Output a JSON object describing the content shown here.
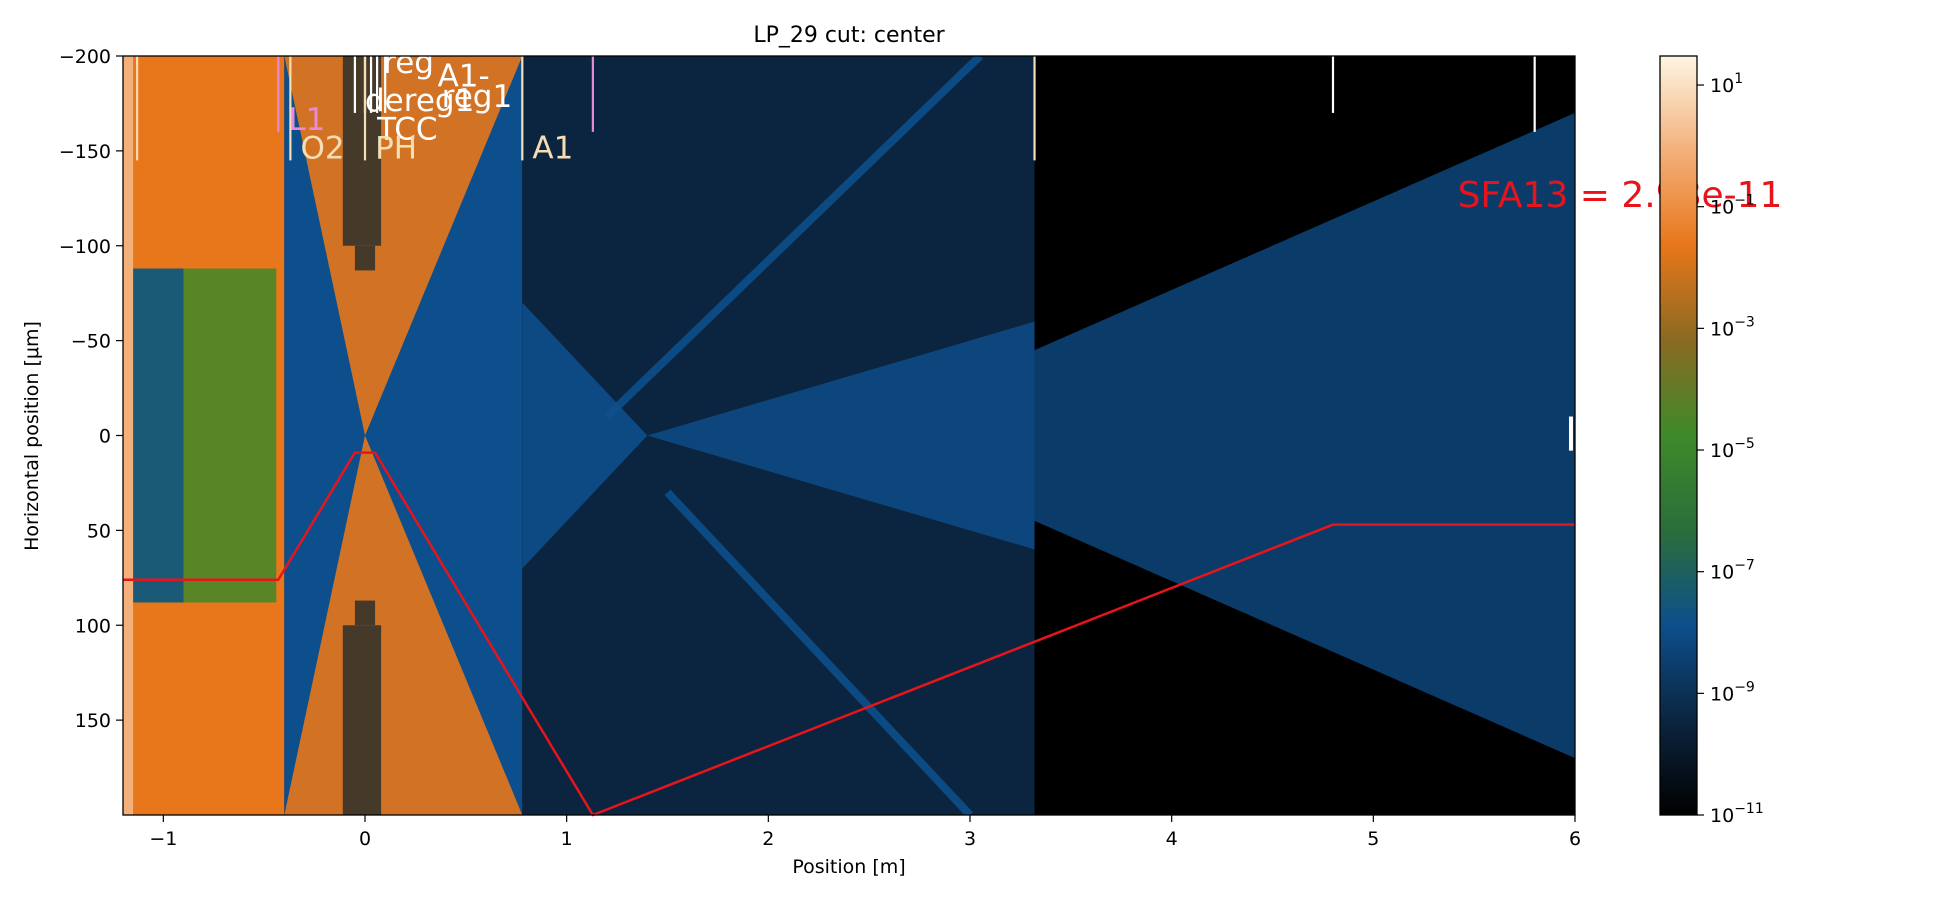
{
  "chart_data": {
    "type": "heatmap",
    "title": "LP_29 cut: center",
    "xlabel": "Position [m]",
    "ylabel": "Horizontal position [μm]",
    "xlim": [
      -1.2,
      6.0
    ],
    "ylim": [
      -200,
      200
    ],
    "y_inverted": true,
    "xticks": [
      -1,
      0,
      1,
      2,
      3,
      4,
      5,
      6
    ],
    "xtick_labels": [
      "−1",
      "0",
      "1",
      "2",
      "3",
      "4",
      "5",
      "6"
    ],
    "yticks": [
      -200,
      -150,
      -100,
      -50,
      0,
      50,
      100,
      150
    ],
    "ytick_labels": [
      "−200",
      "−150",
      "−100",
      "−50",
      "0",
      "50",
      "100",
      "150"
    ],
    "colorbar": {
      "scale": "log",
      "range": [
        1e-11,
        30
      ],
      "ticks": [
        1e-11,
        1e-09,
        1e-07,
        1e-05,
        0.001,
        0.1,
        10
      ],
      "tick_labels": [
        {
          "base": "10",
          "exp": "−11"
        },
        {
          "base": "10",
          "exp": "−9"
        },
        {
          "base": "10",
          "exp": "−7"
        },
        {
          "base": "10",
          "exp": "−5"
        },
        {
          "base": "10",
          "exp": "−3"
        },
        {
          "base": "10",
          "exp": "−1"
        },
        {
          "base": "10",
          "exp": "1"
        }
      ],
      "colormap": [
        "#000000",
        "#0b2540",
        "#0d4f8c",
        "#2a6e3a",
        "#3e8a2a",
        "#8a6a22",
        "#e8761a",
        "#f3b07a",
        "#fdf5e2"
      ]
    },
    "element_markers": [
      {
        "label": "",
        "x": -1.13,
        "color": "#f5deb3",
        "extent": [
          -200,
          -145
        ]
      },
      {
        "label": "L1",
        "x": -0.43,
        "color": "#e98ad8",
        "extent": [
          -200,
          -160
        ]
      },
      {
        "label": "O2",
        "x": -0.37,
        "color": "#f5deb3",
        "extent": [
          -200,
          -145
        ]
      },
      {
        "label": "reg",
        "x": -0.05,
        "color": "#ffffff",
        "extent": [
          -200,
          -170
        ]
      },
      {
        "label": "dereg1",
        "x": 0.0,
        "color": "#ffffff",
        "extent": [
          -200,
          -170
        ]
      },
      {
        "label": "A1-",
        "x": 0.06,
        "color": "#ffffff",
        "extent": [
          -200,
          -170
        ]
      },
      {
        "label": "reg1",
        "x": 0.1,
        "color": "#ffffff",
        "extent": [
          -200,
          -170
        ]
      },
      {
        "label": "TCC",
        "x": 0.03,
        "color": "#ffffff",
        "extent": [
          -200,
          -170
        ]
      },
      {
        "label": "PH",
        "x": 0.0,
        "color": "#f5deb3",
        "extent": [
          -200,
          -145
        ]
      },
      {
        "label": "A1",
        "x": 0.78,
        "color": "#f5deb3",
        "extent": [
          -200,
          -145
        ]
      },
      {
        "label": "",
        "x": 1.13,
        "color": "#e98ad8",
        "extent": [
          -200,
          -160
        ]
      },
      {
        "label": "",
        "x": 3.32,
        "color": "#f5deb3",
        "extent": [
          -200,
          -145
        ]
      },
      {
        "label": "",
        "x": 4.8,
        "color": "#ffffff",
        "extent": [
          -200,
          -170
        ]
      },
      {
        "label": "",
        "x": 5.8,
        "color": "#ffffff",
        "extent": [
          -200,
          -160
        ]
      },
      {
        "label": "",
        "x": 5.98,
        "color": "#ffffff",
        "extent": [
          -10,
          8
        ]
      }
    ],
    "marker_label_color": "#f5deb3",
    "annotation": {
      "text": "SFA13 = 2.98e-11",
      "color": "#e8141c"
    },
    "red_path": {
      "color": "#e8141c",
      "x": [
        -1.2,
        -0.43,
        -0.05,
        0.05,
        1.13,
        4.8,
        6.0
      ],
      "y": [
        76,
        76,
        9,
        9,
        200,
        47,
        47
      ]
    },
    "aperture_walls": {
      "color": "#453a2a"
    }
  }
}
